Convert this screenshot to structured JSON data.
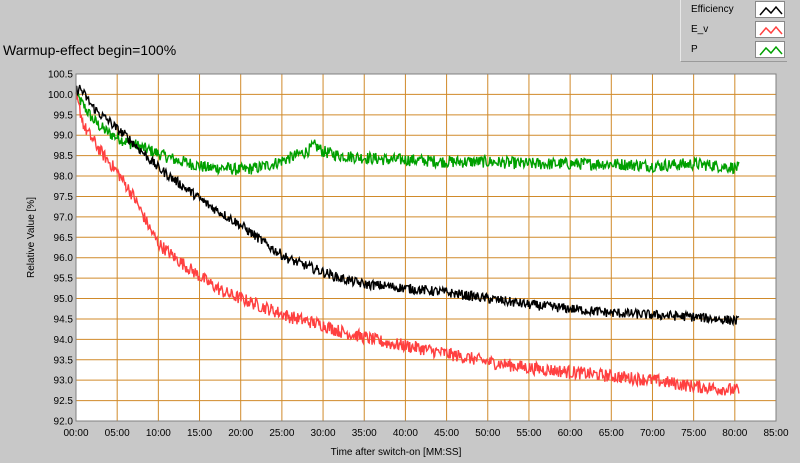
{
  "chart_data": {
    "type": "line",
    "title": "Warmup-effect begin=100%",
    "xlabel": "Time after switch-on [MM:SS]",
    "ylabel": "Relative Value [%]",
    "xlim": [
      0,
      85
    ],
    "ylim": [
      92.0,
      100.5
    ],
    "x_ticks": [
      "00:00",
      "05:00",
      "10:00",
      "15:00",
      "20:00",
      "25:00",
      "30:00",
      "35:00",
      "40:00",
      "45:00",
      "50:00",
      "55:00",
      "60:00",
      "65:00",
      "70:00",
      "75:00",
      "80:00",
      "85:00"
    ],
    "y_ticks": [
      "92.0",
      "92.5",
      "93.0",
      "93.5",
      "94.0",
      "94.5",
      "95.0",
      "95.5",
      "96.0",
      "96.5",
      "97.0",
      "97.5",
      "98.0",
      "98.5",
      "99.0",
      "99.5",
      "100.0",
      "100.5"
    ],
    "grid": true,
    "legend_position": "top-right",
    "series": [
      {
        "name": "Efficiency",
        "color": "#000000",
        "noise": 0.12,
        "x": [
          0,
          0.5,
          1,
          2,
          3,
          4,
          5,
          6,
          7,
          8,
          9,
          10,
          12,
          14,
          16,
          18,
          20,
          22,
          24,
          26,
          28,
          30,
          32,
          35,
          38,
          40,
          45,
          50,
          55,
          60,
          65,
          70,
          75,
          80.5
        ],
        "y": [
          100.1,
          100.15,
          100.0,
          99.7,
          99.5,
          99.35,
          99.15,
          99.0,
          98.8,
          98.6,
          98.4,
          98.2,
          97.9,
          97.6,
          97.3,
          97.05,
          96.8,
          96.5,
          96.2,
          95.95,
          95.8,
          95.65,
          95.5,
          95.35,
          95.3,
          95.25,
          95.15,
          95.0,
          94.85,
          94.75,
          94.65,
          94.6,
          94.55,
          94.45
        ]
      },
      {
        "name": "E_v",
        "color": "#ff4040",
        "noise": 0.16,
        "x": [
          0,
          0.5,
          1,
          2,
          3,
          4,
          5,
          6,
          7,
          8,
          9,
          10,
          12,
          14,
          16,
          18,
          20,
          22,
          24,
          26,
          28,
          30,
          32,
          35,
          38,
          40,
          45,
          50,
          55,
          60,
          65,
          70,
          75,
          80.5
        ],
        "y": [
          99.9,
          99.6,
          99.2,
          98.9,
          98.6,
          98.35,
          98.1,
          97.8,
          97.5,
          97.1,
          96.7,
          96.35,
          96.0,
          95.7,
          95.4,
          95.15,
          95.0,
          94.85,
          94.7,
          94.55,
          94.45,
          94.35,
          94.2,
          94.05,
          93.9,
          93.85,
          93.65,
          93.45,
          93.3,
          93.2,
          93.1,
          93.0,
          92.85,
          92.75
        ]
      },
      {
        "name": "P",
        "color": "#00a000",
        "noise": 0.15,
        "x": [
          0,
          1,
          2,
          3,
          4,
          5,
          6,
          8,
          10,
          12,
          14,
          16,
          18,
          20,
          22,
          24,
          26,
          28,
          29,
          30,
          32,
          35,
          38,
          40,
          45,
          50,
          55,
          60,
          65,
          70,
          75,
          80.5
        ],
        "y": [
          100.0,
          99.7,
          99.4,
          99.2,
          99.05,
          98.95,
          98.85,
          98.7,
          98.55,
          98.4,
          98.3,
          98.2,
          98.2,
          98.15,
          98.2,
          98.3,
          98.45,
          98.6,
          98.75,
          98.6,
          98.5,
          98.45,
          98.4,
          98.4,
          98.35,
          98.35,
          98.3,
          98.3,
          98.3,
          98.25,
          98.3,
          98.2
        ]
      }
    ]
  }
}
